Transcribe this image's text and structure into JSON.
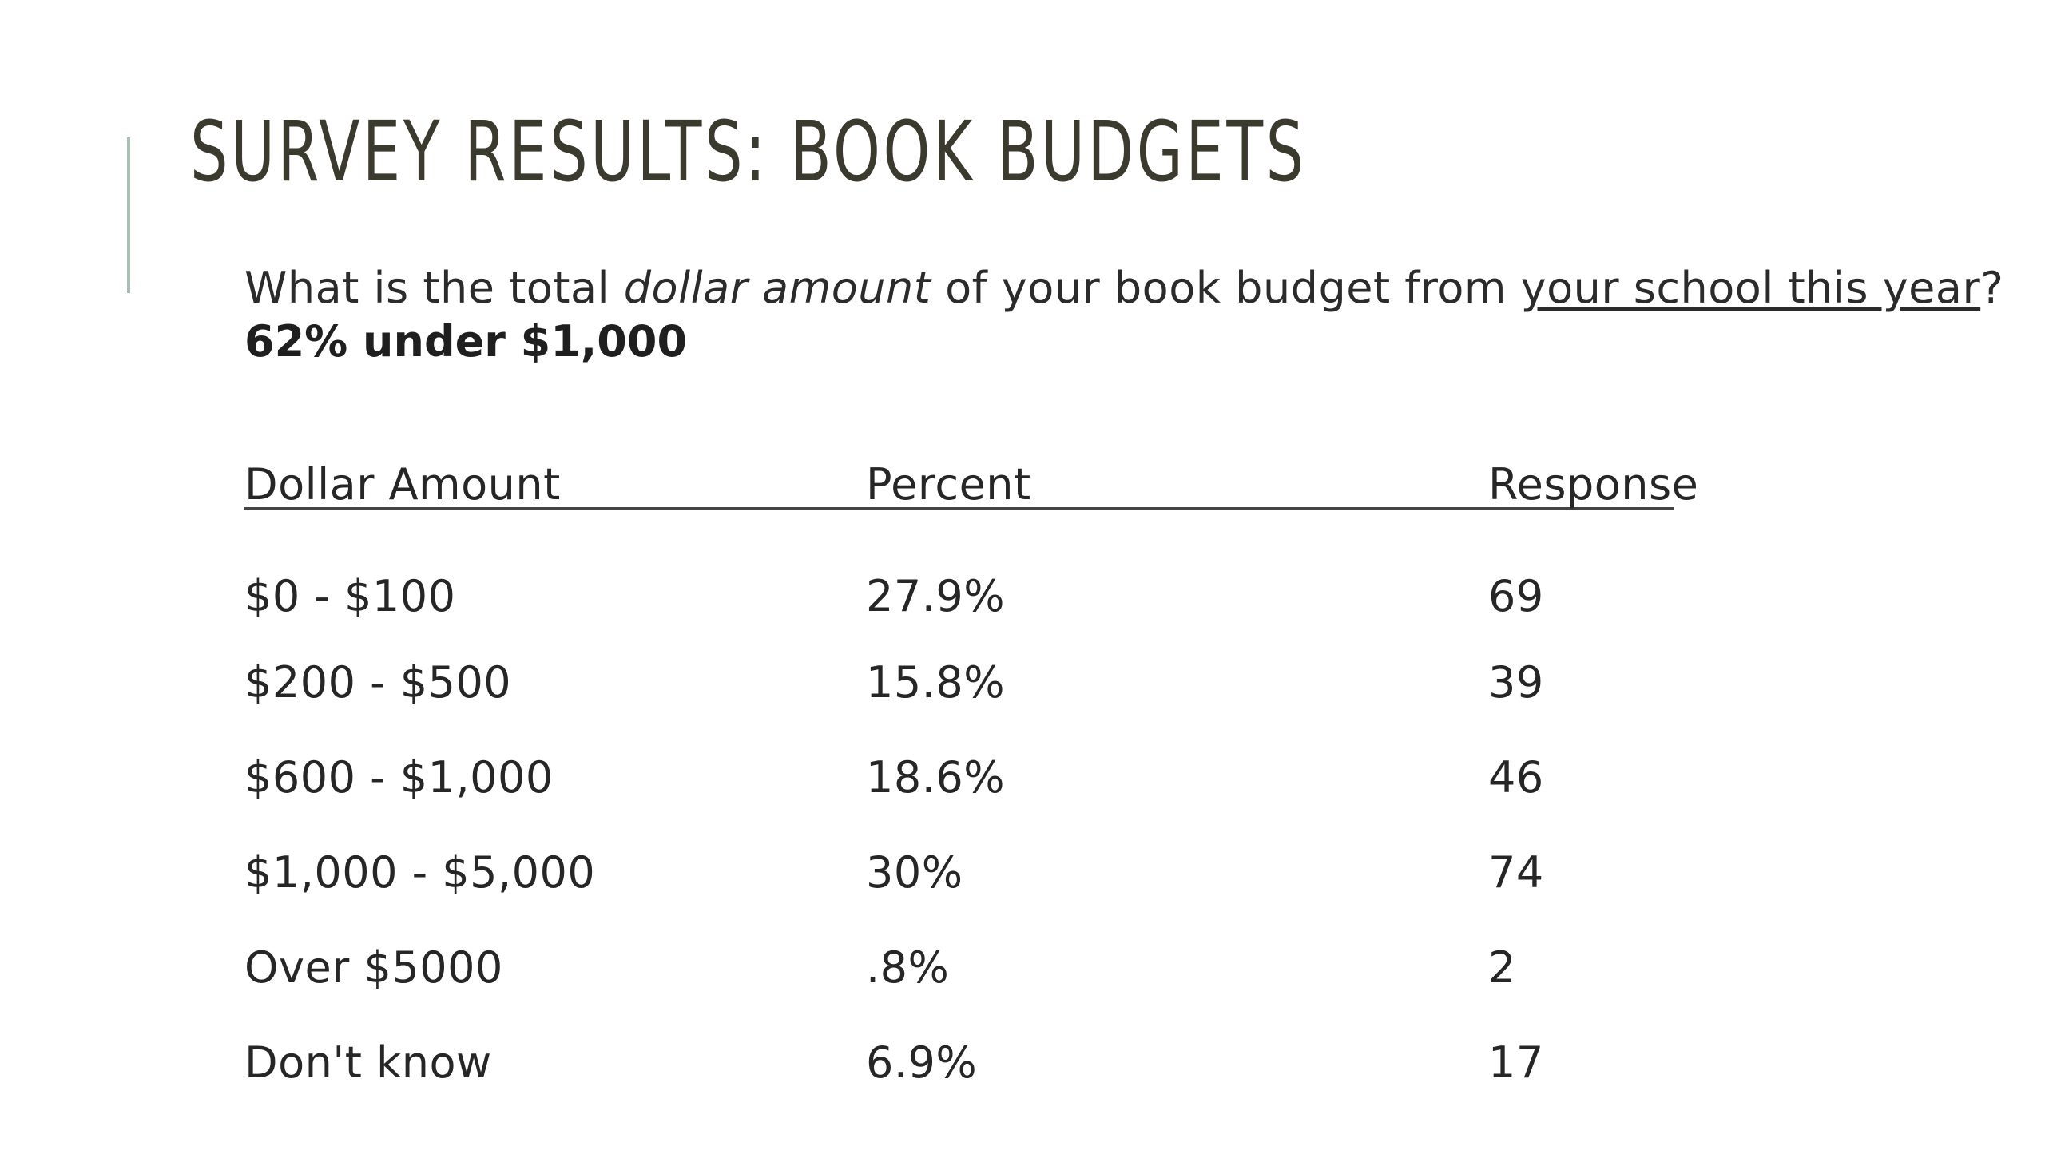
{
  "slide": {
    "title": "Survey Results: Book Budgets",
    "question": {
      "part1": "What is the total ",
      "italic": "dollar amount",
      "part2": " of your book budget from ",
      "underlined": "your school this year",
      "part3": "?"
    },
    "summary": "62% under $1,000"
  },
  "table": {
    "headers": [
      "Dollar Amount",
      "Percent",
      "Response"
    ],
    "rows": [
      [
        "$0 - $100",
        "27.9%",
        "69"
      ],
      [
        "$200 - $500",
        "15.8%",
        "39"
      ],
      [
        "$600 - $1,000",
        "18.6%",
        "46"
      ],
      [
        "$1,000 - $5,000",
        "30%",
        "74"
      ],
      [
        "Over $5000",
        ".8%",
        "2"
      ],
      [
        "Don't know",
        "6.9%",
        "17"
      ]
    ]
  },
  "colors": {
    "title": "#3b3a2f",
    "accent_bar": "#a9bfb6",
    "text": "#2b2b2b"
  }
}
